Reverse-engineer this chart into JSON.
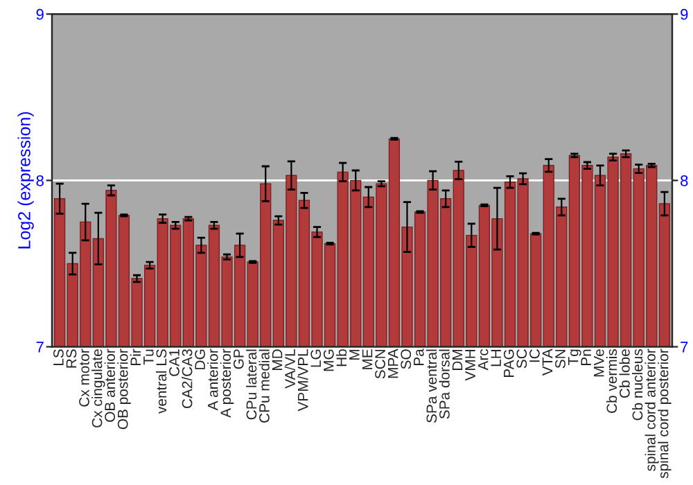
{
  "chart_data": {
    "type": "bar",
    "ylabel": "Log2 (expression)",
    "categories": [
      "LS",
      "RS",
      "Cx motor",
      "Cx cingulate",
      "OB anterior",
      "OB posterior",
      "Pir",
      "Tu",
      "ventral LS",
      "CA1",
      "CA2/CA3",
      "DG",
      "A anterior",
      "A posterior",
      "GP",
      "CPu lateral",
      "CPu medial",
      "MD",
      "VA/VL",
      "VPM/VPL",
      "LG",
      "MG",
      "Hb",
      "M",
      "ME",
      "SCN",
      "MPA",
      "SO",
      "Pa",
      "SPa ventral",
      "SPa dorsal",
      "DM",
      "VMH",
      "Arc",
      "LH",
      "PAG",
      "SC",
      "IC",
      "VTA",
      "SN",
      "Tg",
      "Pn",
      "MVe",
      "Cb vermis",
      "Cb lobe",
      "Cb nucleus",
      "spinal cord anterior",
      "spinal cord posterior"
    ],
    "series": [
      {
        "color": "#b33a3a",
        "values": [
          7.89,
          7.5,
          7.75,
          7.65,
          7.94,
          7.79,
          7.41,
          7.49,
          7.77,
          7.73,
          7.77,
          7.61,
          7.73,
          7.54,
          7.61,
          7.51,
          7.98,
          7.76,
          8.03,
          7.88,
          7.69,
          7.62,
          8.05,
          8.0,
          7.9,
          7.98,
          8.25,
          7.72,
          7.81,
          8.0,
          7.89,
          8.06,
          7.67,
          7.85,
          7.77,
          7.99,
          8.01,
          7.68,
          8.09,
          7.84,
          8.15,
          8.09,
          8.03,
          8.14,
          8.16,
          8.07,
          8.09,
          7.86
        ],
        "errors": [
          0.09,
          0.065,
          0.11,
          0.155,
          0.03,
          0.005,
          0.02,
          0.02,
          0.025,
          0.02,
          0.01,
          0.045,
          0.02,
          0.015,
          0.07,
          0.005,
          0.105,
          0.025,
          0.085,
          0.045,
          0.03,
          0.005,
          0.055,
          0.06,
          0.06,
          0.015,
          0.005,
          0.15,
          0.005,
          0.055,
          0.05,
          0.053,
          0.07,
          0.005,
          0.185,
          0.035,
          0.033,
          0.005,
          0.038,
          0.05,
          0.01,
          0.02,
          0.06,
          0.02,
          0.02,
          0.025,
          0.01,
          0.07
        ]
      }
    ],
    "ylim": [
      7,
      9
    ],
    "yticks": [
      7,
      8,
      9
    ],
    "y2lim": [
      7,
      9
    ],
    "y2ticks": [
      7,
      8,
      9
    ],
    "grid": "y",
    "legend": false
  }
}
